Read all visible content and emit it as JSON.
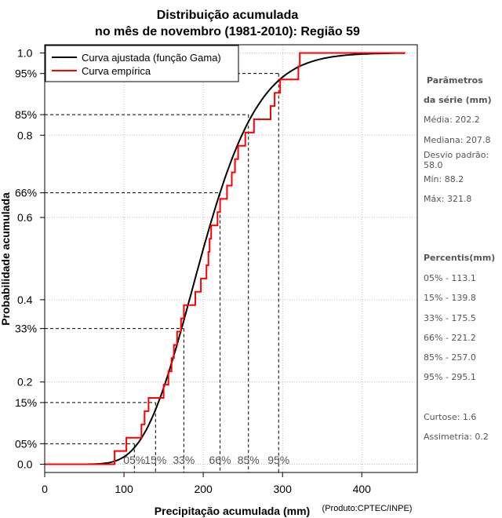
{
  "chart_data": {
    "type": "line",
    "title": [
      "Distribuição acumulada",
      "no mês de novembro (1981-2010): Região 59"
    ],
    "xlabel": "Precipitação acumulada (mm)",
    "ylabel": "Probabilidade acumulada",
    "credit": "(Produto:CPTEC/INPE)",
    "xlim": [
      0,
      470
    ],
    "ylim": [
      -0.02,
      1.02
    ],
    "x_ticks": [
      0,
      100,
      200,
      300,
      400
    ],
    "y_ticks": [
      0.0,
      0.2,
      0.4,
      0.6,
      0.8,
      1.0
    ],
    "y_tick_labels": [
      "0.0",
      "0.2",
      "0.4",
      "0.6",
      "0.8",
      "1.0"
    ],
    "grid": true,
    "legend": {
      "position": "top-left",
      "entries": [
        {
          "label": "Curva ajustada (função Gama)",
          "color": "#000000"
        },
        {
          "label": "Curva empírica",
          "color": "#ff0000"
        }
      ]
    },
    "gamma": {
      "mean": 202.2,
      "sd": 58.0
    },
    "series": [
      {
        "name": "Curva empírica",
        "color": "#ff0000",
        "x": [
          88.2,
          103.0,
          122.0,
          126.0,
          131.0,
          150.0,
          156.0,
          160.0,
          163.0,
          167.0,
          172.0,
          175.5,
          190.0,
          197.0,
          204.0,
          206.5,
          208.0,
          210.0,
          218.0,
          221.2,
          230.0,
          236.0,
          240.0,
          244.0,
          253.0,
          264.0,
          285.0,
          290.0,
          297.0,
          320.0,
          321.8
        ]
      }
    ],
    "percentiles": [
      {
        "label": "05%",
        "p": 0.05,
        "value": 113.1
      },
      {
        "label": "15%",
        "p": 0.15,
        "value": 139.8
      },
      {
        "label": "33%",
        "p": 0.33,
        "value": 175.5
      },
      {
        "label": "66%",
        "p": 0.66,
        "value": 221.2
      },
      {
        "label": "85%",
        "p": 0.85,
        "value": 257.0
      },
      {
        "label": "95%",
        "p": 0.95,
        "value": 295.1
      }
    ]
  },
  "sidebar": {
    "params_title_1": "Parâmetros",
    "params_title_2": "da série (mm)",
    "media": "Média: 202.2",
    "mediana": "Mediana: 207.8",
    "desvio": "Desvio padrão: 58.0",
    "min": "Mín: 88.2",
    "max": "Máx: 321.8",
    "percentis_title": "Percentis(mm)",
    "p05": "05% - 113.1",
    "p15": "15% - 139.8",
    "p33": "33% - 175.5",
    "p66": "66% - 221.2",
    "p85": "85% - 257.0",
    "p95": "95% - 295.1",
    "curtose": "Curtose: 1.6",
    "assimetria": "Assimetria: 0.2"
  }
}
